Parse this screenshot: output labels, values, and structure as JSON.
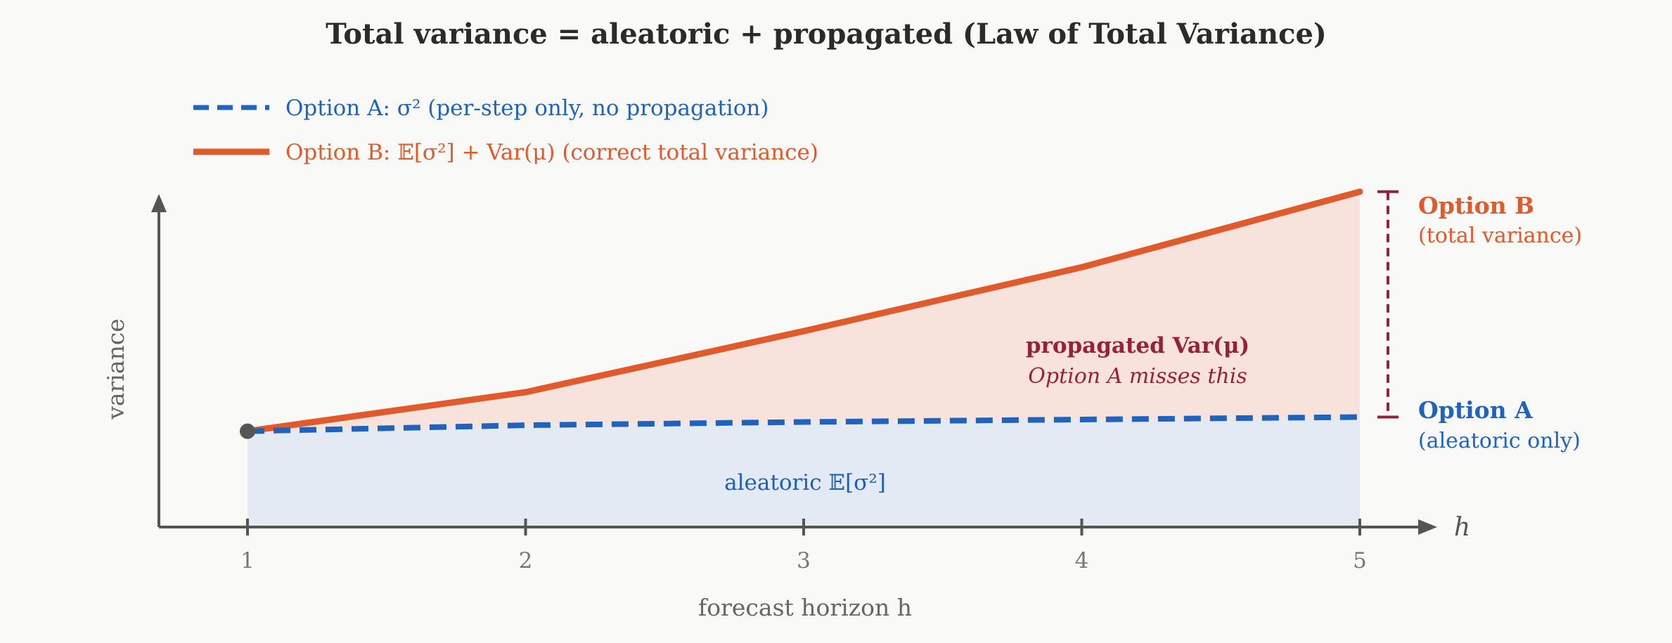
{
  "colors": {
    "option_a": "#1f63bd",
    "option_b": "#e05a2b",
    "area_a": "#e3eaf3",
    "area_b": "#f8e3dc",
    "bracket": "#98213a",
    "axis": "#555555"
  },
  "chart_data": {
    "type": "line",
    "title": "Total variance = aleatoric + propagated (Law of Total Variance)",
    "xlabel": "forecast horizon h",
    "ylabel": "variance",
    "x_axis_symbol": "h",
    "x": [
      1,
      2,
      3,
      4,
      5
    ],
    "xticks": [
      "1",
      "2",
      "3",
      "4",
      "5"
    ],
    "ylim": [
      0,
      1
    ],
    "series": [
      {
        "name": "Option A: σ² (per-step only, no propagation)",
        "style": "dashed",
        "color": "#1f63bd",
        "values": [
          0.27,
          0.287,
          0.296,
          0.303,
          0.31
        ]
      },
      {
        "name": "Option B: 𝔼[σ²] + Var(μ) (correct total variance)",
        "style": "solid",
        "color": "#e05a2b",
        "values": [
          0.27,
          0.38,
          0.552,
          0.732,
          0.945
        ]
      }
    ],
    "legend_position": "top-left",
    "grid": false,
    "annotations": {
      "option_b_title": "Option B",
      "option_b_sub": "(total variance)",
      "option_a_title": "Option A",
      "option_a_sub": "(aleatoric only)",
      "propagated_title": "propagated Var(μ)",
      "propagated_sub": "Option A misses this",
      "aleatoric_label": "aleatoric 𝔼[σ²]"
    }
  }
}
